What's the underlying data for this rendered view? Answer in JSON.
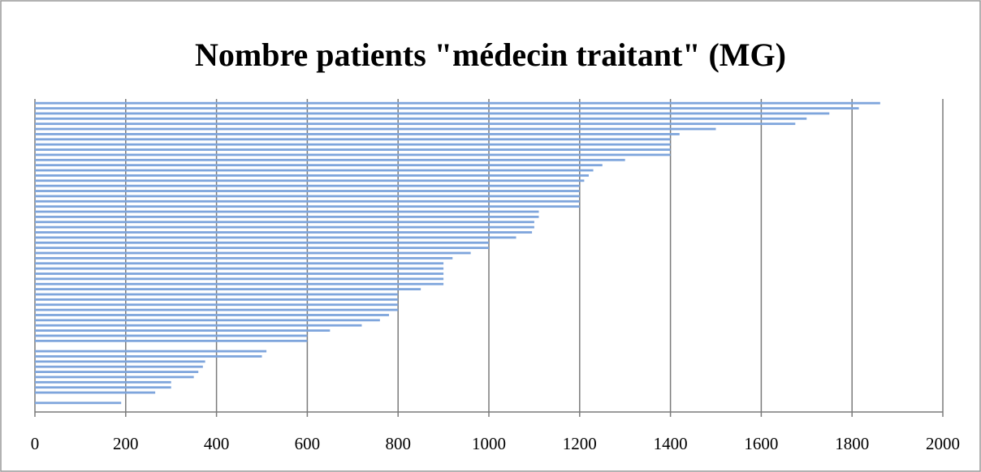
{
  "chart_data": {
    "type": "hbar",
    "title": "Nombre patients \"médecin traitant\" (MG)",
    "categories": [
      null,
      null,
      null,
      null,
      null,
      null,
      null,
      null,
      null,
      null,
      null,
      null,
      null,
      null,
      null,
      null,
      null,
      null,
      null,
      null,
      null,
      null,
      null,
      null,
      null,
      null,
      null,
      null,
      null,
      null,
      null,
      null,
      null,
      null,
      null,
      null,
      null,
      null,
      null,
      null,
      null,
      null,
      null,
      null,
      null,
      null,
      null,
      null,
      null,
      null,
      null,
      null,
      null,
      null,
      null,
      null,
      null,
      null,
      null
    ],
    "values": [
      1862,
      1815,
      1750,
      1700,
      1675,
      1500,
      1420,
      1400,
      1400,
      1400,
      1400,
      1300,
      1250,
      1230,
      1220,
      1210,
      1200,
      1200,
      1200,
      1200,
      1200,
      1110,
      1110,
      1100,
      1100,
      1095,
      1060,
      1000,
      1000,
      960,
      920,
      900,
      900,
      900,
      900,
      900,
      850,
      800,
      800,
      800,
      800,
      780,
      760,
      720,
      650,
      600,
      600,
      0,
      510,
      500,
      375,
      370,
      360,
      350,
      300,
      300,
      265,
      0,
      190
    ],
    "color": "#7ea5dc",
    "xlim": [
      0,
      2000
    ],
    "xticks": [
      0,
      200,
      400,
      600,
      800,
      1000,
      1200,
      1400,
      1600,
      1800,
      2000
    ],
    "grid": true
  }
}
